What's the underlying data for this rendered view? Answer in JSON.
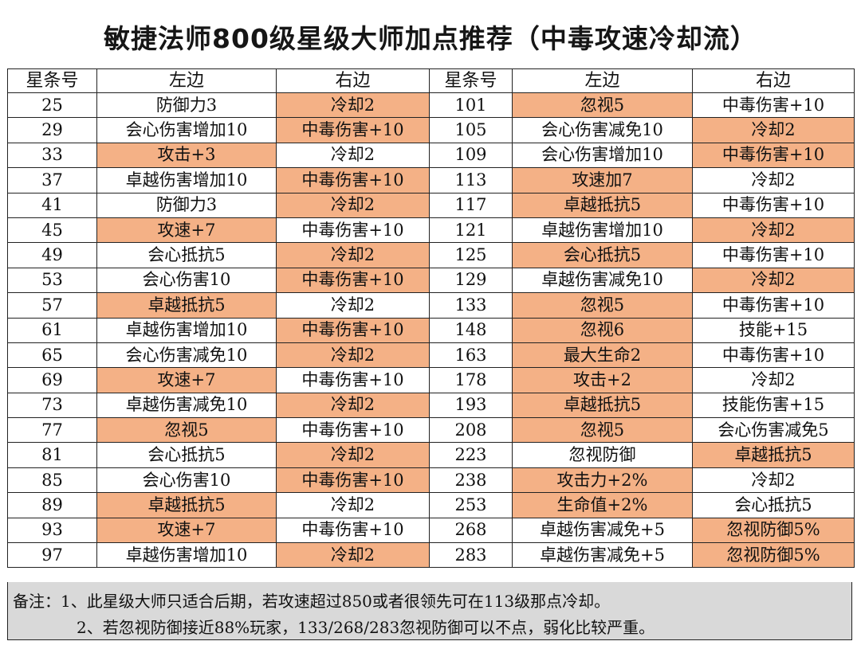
{
  "title": "敏捷法师800级星级大师加点推荐（中毒攻速冷却流）",
  "headers": [
    "星条号",
    "左边",
    "右边",
    "星条号",
    "左边",
    "右边"
  ],
  "rows": [
    {
      "cells": [
        "25",
        "防御力3",
        "冷却2",
        "101",
        "忽视5",
        "中毒伤害+10"
      ],
      "hl": [
        false,
        false,
        true,
        false,
        true,
        false
      ]
    },
    {
      "cells": [
        "29",
        "会心伤害增加10",
        "中毒伤害+10",
        "105",
        "会心伤害减免10",
        "冷却2"
      ],
      "hl": [
        false,
        false,
        true,
        false,
        false,
        true
      ]
    },
    {
      "cells": [
        "33",
        "攻击+3",
        "冷却2",
        "109",
        "会心伤害增加10",
        "中毒伤害+10"
      ],
      "hl": [
        false,
        true,
        false,
        false,
        false,
        true
      ]
    },
    {
      "cells": [
        "37",
        "卓越伤害增加10",
        "中毒伤害+10",
        "113",
        "攻速加7",
        "冷却2"
      ],
      "hl": [
        false,
        false,
        true,
        false,
        true,
        false
      ]
    },
    {
      "cells": [
        "41",
        "防御力3",
        "冷却2",
        "117",
        "卓越抵抗5",
        "中毒伤害+10"
      ],
      "hl": [
        false,
        false,
        true,
        false,
        true,
        false
      ]
    },
    {
      "cells": [
        "45",
        "攻速+7",
        "中毒伤害+10",
        "121",
        "卓越伤害增加10",
        "冷却2"
      ],
      "hl": [
        false,
        true,
        false,
        false,
        false,
        true
      ]
    },
    {
      "cells": [
        "49",
        "会心抵抗5",
        "冷却2",
        "125",
        "会心抵抗5",
        "中毒伤害+10"
      ],
      "hl": [
        false,
        false,
        true,
        false,
        true,
        false
      ]
    },
    {
      "cells": [
        "53",
        "会心伤害10",
        "中毒伤害+10",
        "129",
        "卓越伤害减免10",
        "冷却2"
      ],
      "hl": [
        false,
        false,
        true,
        false,
        false,
        true
      ]
    },
    {
      "cells": [
        "57",
        "卓越抵抗5",
        "冷却2",
        "133",
        "忽视5",
        "中毒伤害+10"
      ],
      "hl": [
        false,
        true,
        false,
        false,
        true,
        false
      ]
    },
    {
      "cells": [
        "61",
        "卓越伤害增加10",
        "中毒伤害+10",
        "148",
        "忽视6",
        "技能+15"
      ],
      "hl": [
        false,
        false,
        true,
        false,
        true,
        false
      ]
    },
    {
      "cells": [
        "65",
        "会心伤害减免10",
        "冷却2",
        "163",
        "最大生命2",
        "中毒伤害+10"
      ],
      "hl": [
        false,
        false,
        true,
        false,
        true,
        false
      ]
    },
    {
      "cells": [
        "69",
        "攻速+7",
        "中毒伤害+10",
        "178",
        "攻击+2",
        "冷却2"
      ],
      "hl": [
        false,
        true,
        false,
        false,
        true,
        false
      ]
    },
    {
      "cells": [
        "73",
        "卓越伤害减免10",
        "冷却2",
        "193",
        "卓越抵抗5",
        "技能伤害+15"
      ],
      "hl": [
        false,
        false,
        true,
        false,
        true,
        false
      ]
    },
    {
      "cells": [
        "77",
        "忽视5",
        "中毒伤害+10",
        "208",
        "忽视5",
        "会心伤害减免5"
      ],
      "hl": [
        false,
        true,
        false,
        false,
        true,
        false
      ]
    },
    {
      "cells": [
        "81",
        "会心抵抗5",
        "冷却2",
        "223",
        "忽视防御",
        "卓越抵抗5"
      ],
      "hl": [
        false,
        false,
        true,
        false,
        false,
        true
      ]
    },
    {
      "cells": [
        "85",
        "会心伤害10",
        "中毒伤害+10",
        "238",
        "攻击力+2%",
        "冷却2"
      ],
      "hl": [
        false,
        false,
        true,
        false,
        true,
        false
      ]
    },
    {
      "cells": [
        "89",
        "卓越抵抗5",
        "冷却2",
        "253",
        "生命值+2%",
        "会心抵抗5"
      ],
      "hl": [
        false,
        true,
        false,
        false,
        true,
        false
      ]
    },
    {
      "cells": [
        "93",
        "攻速+7",
        "中毒伤害+10",
        "268",
        "卓越伤害减免+5",
        "忽视防御5%"
      ],
      "hl": [
        false,
        true,
        false,
        false,
        false,
        true
      ]
    },
    {
      "cells": [
        "97",
        "卓越伤害增加10",
        "冷却2",
        "283",
        "卓越伤害减免+5",
        "忽视防御5%"
      ],
      "hl": [
        false,
        false,
        true,
        false,
        false,
        true
      ]
    }
  ],
  "colors": {
    "highlight": "#f4b186",
    "notes_background": "#d9d9d9"
  },
  "notes": {
    "line1": "备注：1、此星级大师只适合后期，若攻速超过850或者很领先可在113级那点冷却。",
    "line2": "2、若忽视防御接近88%玩家，133/268/283忽视防御可以不点，弱化比较严重。"
  }
}
